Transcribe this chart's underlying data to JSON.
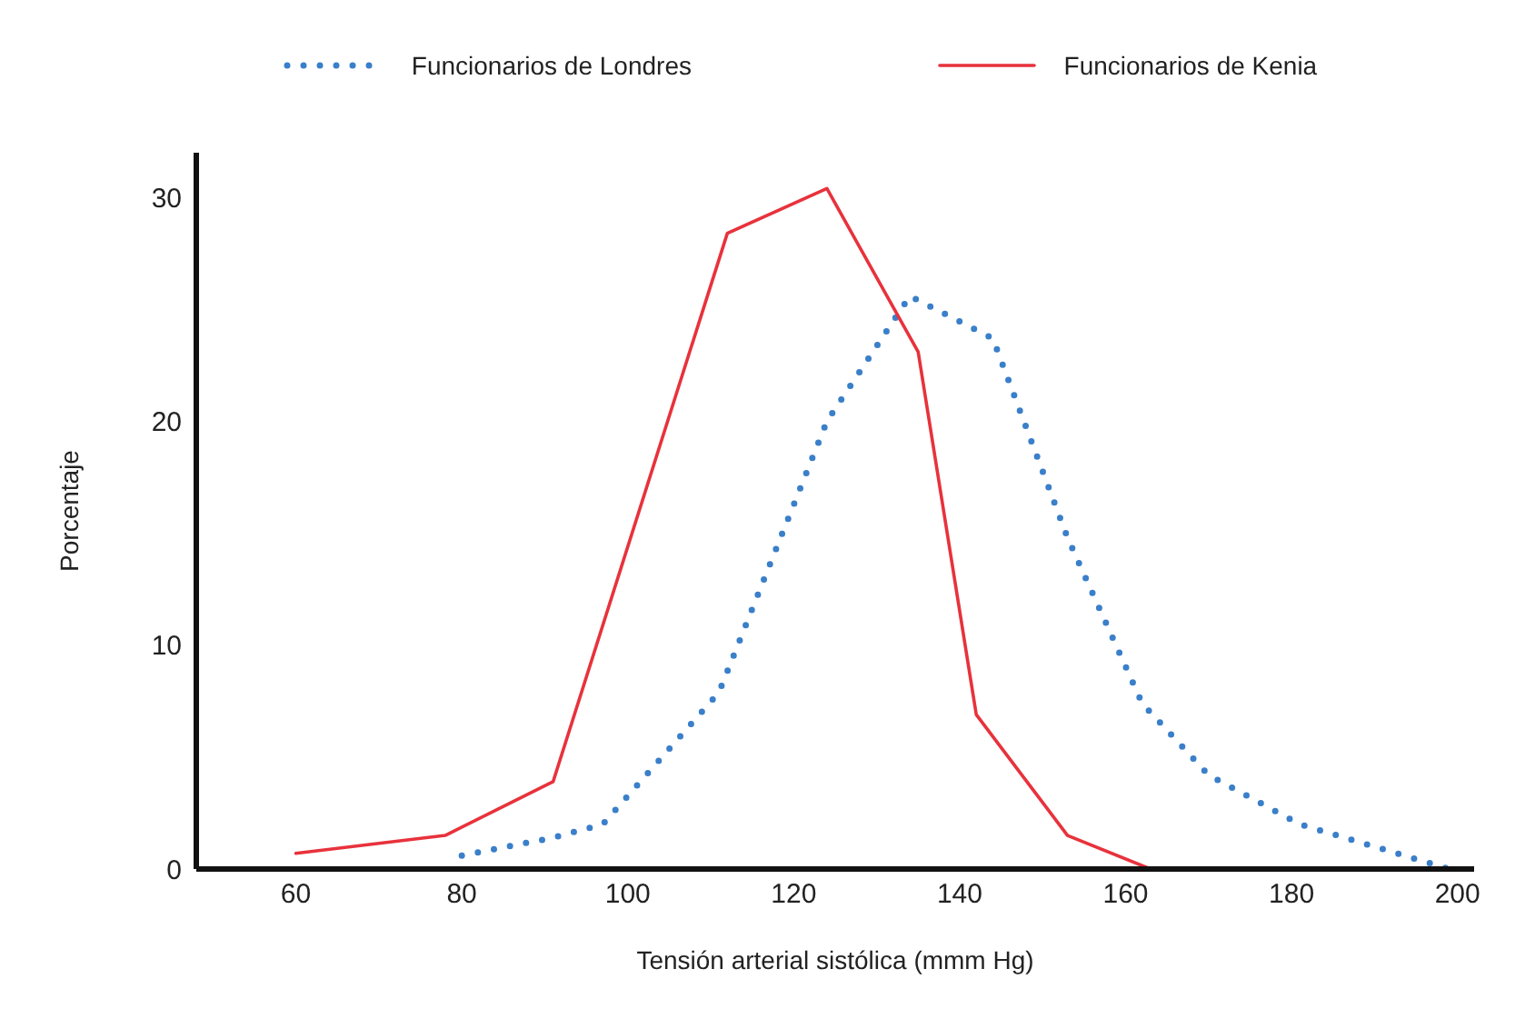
{
  "chart_data": {
    "type": "line",
    "xlabel": "Tensión arterial sistólica (mmm Hg)",
    "ylabel": "Porcentaje",
    "xlim": [
      48,
      202
    ],
    "xticks": [
      60,
      80,
      100,
      120,
      140,
      160,
      180,
      200
    ],
    "ylim": [
      0,
      32
    ],
    "yticks": [
      0,
      10,
      20,
      30
    ],
    "grid": false,
    "legend": "top",
    "marker": "none",
    "series": [
      {
        "name": "Funcionarios de Londres",
        "color": "#3a7fc9",
        "line_style": "dotted",
        "x": [
          80,
          91,
          97,
          111,
          124,
          134,
          144,
          153,
          162,
          170,
          181,
          199
        ],
        "values": [
          0.6,
          1.4,
          2,
          7.9,
          20,
          25.6,
          23.7,
          14.8,
          7.4,
          4.2,
          2,
          0
        ]
      },
      {
        "name": "Funcionarios de Kenia",
        "color": "#e8323c",
        "line_style": "solid",
        "x": [
          60,
          78,
          91,
          112,
          124,
          135,
          142,
          153,
          163
        ],
        "values": [
          0.7,
          1.5,
          3.9,
          28.4,
          30.4,
          23.1,
          6.9,
          1.5,
          0
        ]
      }
    ]
  }
}
